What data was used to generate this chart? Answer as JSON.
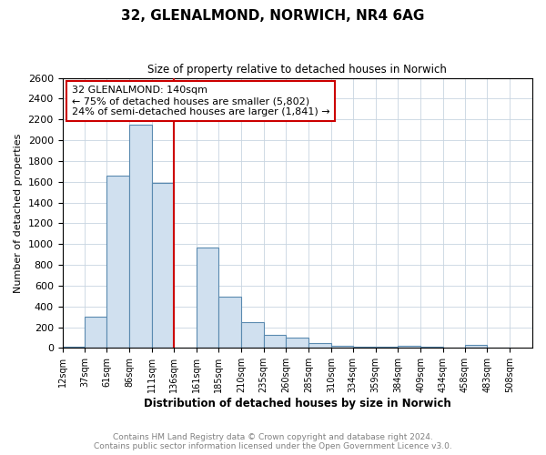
{
  "title": "32, GLENALMOND, NORWICH, NR4 6AG",
  "subtitle": "Size of property relative to detached houses in Norwich",
  "xlabel": "Distribution of detached houses by size in Norwich",
  "ylabel": "Number of detached properties",
  "annotation_line1": "32 GLENALMOND: 140sqm",
  "annotation_line2": "← 75% of detached houses are smaller (5,802)",
  "annotation_line3": "24% of semi-detached houses are larger (1,841) →",
  "bar_color": "#d0e0ef",
  "bar_edge_color": "#5a8ab0",
  "vline_x": 136,
  "vline_color": "#cc0000",
  "categories": [
    "12sqm",
    "37sqm",
    "61sqm",
    "86sqm",
    "111sqm",
    "136sqm",
    "161sqm",
    "185sqm",
    "210sqm",
    "235sqm",
    "260sqm",
    "285sqm",
    "310sqm",
    "334sqm",
    "359sqm",
    "384sqm",
    "409sqm",
    "434sqm",
    "458sqm",
    "483sqm",
    "508sqm"
  ],
  "bin_lefts": [
    12,
    37,
    61,
    86,
    111,
    136,
    161,
    185,
    210,
    235,
    260,
    285,
    310,
    334,
    359,
    384,
    409,
    434,
    458,
    483,
    508
  ],
  "bin_width": 25,
  "values": [
    15,
    300,
    1660,
    2150,
    1590,
    0,
    970,
    490,
    245,
    125,
    100,
    45,
    20,
    15,
    10,
    20,
    10,
    5,
    25,
    3
  ],
  "ylim": [
    0,
    2600
  ],
  "yticks": [
    0,
    200,
    400,
    600,
    800,
    1000,
    1200,
    1400,
    1600,
    1800,
    2000,
    2200,
    2400,
    2600
  ],
  "annotation_box_color": "#cc0000",
  "footer1": "Contains HM Land Registry data © Crown copyright and database right 2024.",
  "footer2": "Contains public sector information licensed under the Open Government Licence v3.0.",
  "background_color": "#ffffff",
  "grid_color": "#c8d4e0"
}
